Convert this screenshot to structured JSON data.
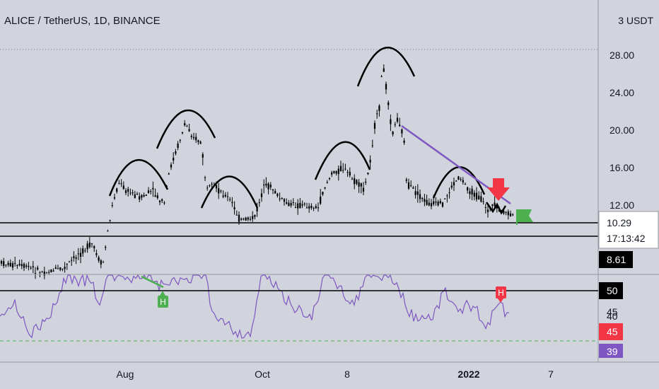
{
  "chart_data": {
    "type": "candlestick",
    "title": "ALICE / TetherUS, 1D, BINANCE",
    "currency_label": "3 USDT",
    "price_axis": {
      "ticks": [
        {
          "label": "28.00",
          "value": 28
        },
        {
          "label": "24.00",
          "value": 24
        },
        {
          "label": "20.00",
          "value": 20
        },
        {
          "label": "16.00",
          "value": 16
        },
        {
          "label": "12.00",
          "value": 12
        }
      ]
    },
    "time_axis": {
      "ticks": [
        {
          "label": "Aug",
          "bold": false,
          "month": 1
        },
        {
          "label": "Oct",
          "bold": false,
          "month": 3
        },
        {
          "label": "8",
          "bold": false,
          "month": 4
        },
        {
          "label": "2022",
          "bold": true,
          "month": 6
        },
        {
          "label": "7",
          "bold": false,
          "month": 7
        }
      ]
    },
    "last_price": {
      "value": "10.29",
      "countdown": "17:13:42",
      "numeric": 10.29
    },
    "support_level": {
      "label": "8.61",
      "numeric": 8.61
    },
    "rsi_badges": [
      {
        "label": "50",
        "color": "#000000",
        "text_color": "#ffffff"
      },
      {
        "label": "45",
        "color": "#d1d4dc",
        "text_color": "#131722"
      },
      {
        "label": "40",
        "color": "#d1d4dc",
        "text_color": "#131722"
      },
      {
        "label": "45",
        "color": "#f23645",
        "text_color": "#ffffff"
      },
      {
        "label": "39",
        "color": "#7e57c2",
        "text_color": "#ffffff"
      }
    ],
    "divergence_markers": [
      "H",
      "H"
    ],
    "colors": {
      "background": "#d1d4dc",
      "candle": "#000000",
      "trendline": "#7e57c2",
      "rsi_line": "#7e57c2",
      "arrow": "#f23645",
      "flag": "#4caf50",
      "green_marker": "#4caf50",
      "red_marker": "#f23645",
      "dashed_level": "#4caf50"
    }
  }
}
